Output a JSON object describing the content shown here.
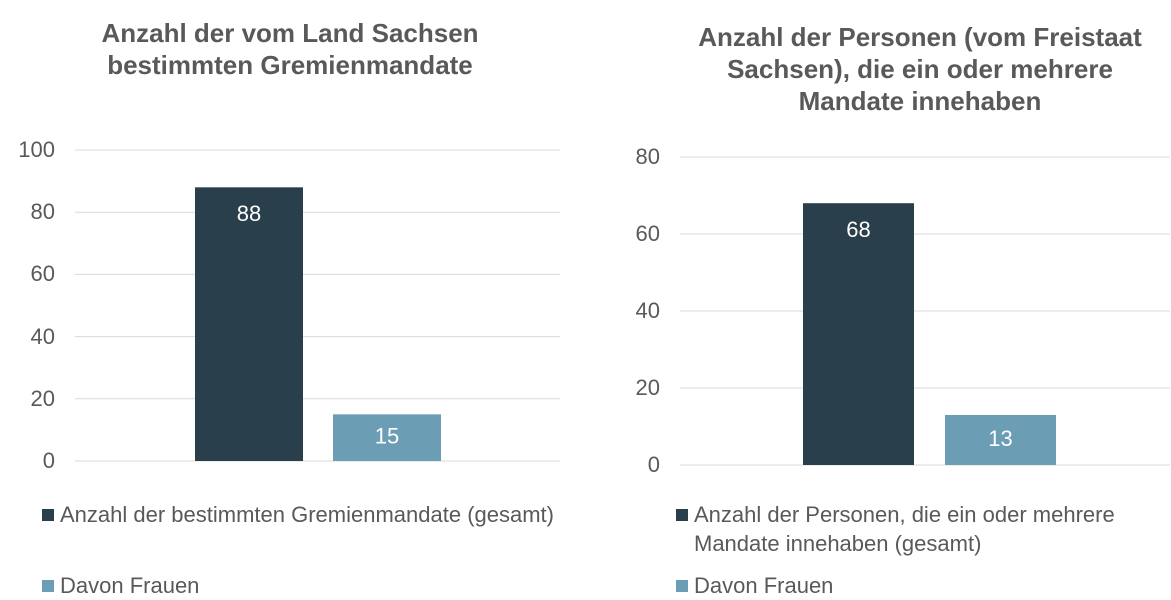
{
  "chart_data": [
    {
      "type": "bar",
      "title": "Anzahl der vom Land Sachsen bestimmten Gremienmandate",
      "ylim": [
        0,
        100
      ],
      "yticks": [
        0,
        20,
        40,
        60,
        80,
        100
      ],
      "grid": true,
      "legend": "bottom",
      "series": [
        {
          "name": "Anzahl der bestimmten Gremienmandate (gesamt)",
          "color": "#2a3f4c",
          "values": [
            88
          ]
        },
        {
          "name": "Davon Frauen",
          "color": "#6b9db5",
          "values": [
            15
          ]
        }
      ]
    },
    {
      "type": "bar",
      "title": "Anzahl der Personen (vom Freistaat Sachsen), die ein oder mehrere Mandate innehaben",
      "ylim": [
        0,
        80
      ],
      "yticks": [
        0,
        20,
        40,
        60,
        80
      ],
      "grid": true,
      "legend": "bottom",
      "series": [
        {
          "name": "Anzahl der Personen, die ein oder mehrere Mandate innehaben (gesamt)",
          "color": "#2a3f4c",
          "values": [
            68
          ]
        },
        {
          "name": "Davon Frauen",
          "color": "#6b9db5",
          "values": [
            13
          ]
        }
      ]
    }
  ]
}
